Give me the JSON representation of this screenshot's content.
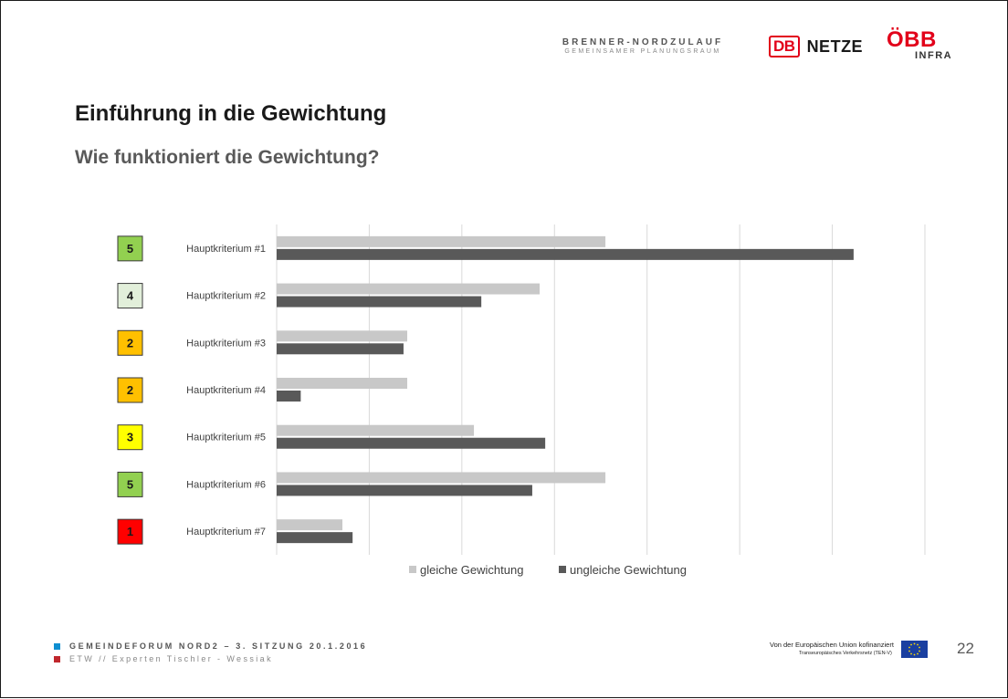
{
  "header": {
    "brenner_title": "BRENNER-NORDZULAUF",
    "brenner_subtitle": "GEMEINSAMER PLANUNGSRAUM",
    "db_logo": "DB",
    "netze": "NETZE",
    "obb": "ÖBB",
    "obb_infra": "INFRA"
  },
  "slide": {
    "title": "Einführung in die Gewichtung",
    "subtitle": "Wie funktioniert die Gewichtung?"
  },
  "colors": {
    "green": "#92d050",
    "pale_green": "#e2efda",
    "orange": "#ffc000",
    "yellow": "#ffff00",
    "red": "#ff0000",
    "series_light": "#c8c8c8",
    "series_dark": "#595959",
    "accent_blue": "#0e8fd1",
    "accent_red": "#c0272d"
  },
  "chart_data": {
    "type": "bar",
    "orientation": "horizontal",
    "categories": [
      "Hauptkriterium #1",
      "Hauptkriterium #2",
      "Hauptkriterium #3",
      "Hauptkriterium #4",
      "Hauptkriterium #5",
      "Hauptkriterium #6",
      "Hauptkriterium #7"
    ],
    "weights": [
      5,
      4,
      2,
      2,
      3,
      5,
      1
    ],
    "weight_colors": [
      "green",
      "pale_green",
      "orange",
      "orange",
      "yellow",
      "green",
      "red"
    ],
    "series": [
      {
        "name": "gleiche Gewichtung",
        "values": [
          3.55,
          2.84,
          1.41,
          1.41,
          2.13,
          3.55,
          0.71
        ]
      },
      {
        "name": "ungleiche Gewichtung",
        "values": [
          6.23,
          2.21,
          1.37,
          0.26,
          2.9,
          2.76,
          0.82
        ]
      }
    ],
    "xlim": [
      0,
      7
    ],
    "grid": true,
    "axis_tick_labels_visible": false,
    "legend": "bottom"
  },
  "footer": {
    "line1": "GEMEINDEFORUM NORD2 – 3. SITZUNG 20.1.2016",
    "line2": "ETW // Experten Tischler - Wessiak",
    "eu_line1": "Von der Europäischen Union kofinanziert",
    "eu_line2": "Transeuropäisches Verkehrsnetz (TEN-V)",
    "page_number": "22"
  }
}
